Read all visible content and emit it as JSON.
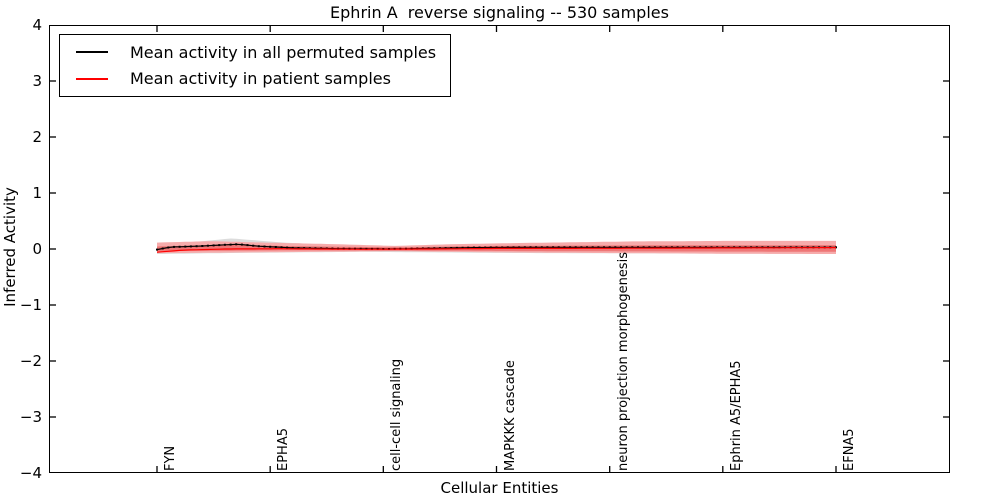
{
  "figure": {
    "title": "Ephrin A  reverse signaling -- 530 samples",
    "xlabel": "Cellular Entities",
    "ylabel": "Inferred Activity"
  },
  "legend": {
    "items": [
      {
        "label": "Mean activity in all permuted samples",
        "color": "#000000"
      },
      {
        "label": "Mean activity in patient samples",
        "color": "#ff0000"
      }
    ]
  },
  "chart_data": {
    "type": "line",
    "title": "Ephrin A  reverse signaling -- 530 samples",
    "xlabel": "Cellular Entities",
    "ylabel": "Inferred Activity",
    "ylim": [
      -4,
      4
    ],
    "yticks": [
      4,
      3,
      2,
      1,
      0,
      -1,
      -2,
      -3,
      -4
    ],
    "yticklabels": [
      "4",
      "3",
      "2",
      "1",
      "0",
      "−1",
      "−2",
      "−3",
      "−4"
    ],
    "grid": false,
    "legend_position": "upper left",
    "categories": [
      "FYN",
      "EPHA5",
      "cell-cell signaling",
      "MAPKKK cascade",
      "neuron projection morphogenesis",
      "Ephrin A5/EPHA5",
      "EFNA5"
    ],
    "category_positions": [
      0,
      0.1667,
      0.3333,
      0.5,
      0.6667,
      0.8333,
      1
    ],
    "n_dense_points": 121,
    "label_every": 20,
    "values_at_categories": {
      "permuted_mean": [
        0.0,
        0.03,
        0.0,
        0.03,
        0.03,
        0.03,
        0.03
      ],
      "patient_mean": [
        -0.05,
        0.0,
        0.0,
        0.0,
        0.01,
        0.02,
        0.03
      ]
    },
    "series": [
      {
        "name": "Mean activity in all permuted samples",
        "color": "#000000",
        "marker": "square",
        "control": [
          [
            0,
            -0.01
          ],
          [
            0.02,
            0.035
          ],
          [
            0.06,
            0.05
          ],
          [
            0.1,
            0.075
          ],
          [
            0.12,
            0.085
          ],
          [
            0.15,
            0.05
          ],
          [
            0.2,
            0.02
          ],
          [
            0.27,
            0.005
          ],
          [
            0.34,
            0.0
          ],
          [
            0.4,
            0.01
          ],
          [
            0.47,
            0.025
          ],
          [
            0.55,
            0.03
          ],
          [
            0.7,
            0.03
          ],
          [
            0.85,
            0.03
          ],
          [
            1,
            0.03
          ]
        ]
      },
      {
        "name": "Mean activity in patient samples",
        "color": "#ff0000",
        "marker": "none",
        "control": [
          [
            0,
            -0.055
          ],
          [
            0.04,
            -0.02
          ],
          [
            0.1,
            0.0
          ],
          [
            0.18,
            0.005
          ],
          [
            0.3,
            -0.005
          ],
          [
            0.4,
            0.0
          ],
          [
            0.5,
            0.01
          ],
          [
            0.65,
            0.012
          ],
          [
            0.8,
            0.018
          ],
          [
            1,
            0.025
          ]
        ]
      }
    ],
    "bands": [
      {
        "name": "permuted-std-band",
        "color": "#dcdcdc",
        "upper": [
          [
            0,
            0.06
          ],
          [
            0.05,
            0.12
          ],
          [
            0.11,
            0.19
          ],
          [
            0.18,
            0.12
          ],
          [
            0.26,
            0.07
          ],
          [
            0.34,
            0.04
          ],
          [
            0.42,
            0.08
          ],
          [
            0.5,
            0.09
          ],
          [
            0.6,
            0.08
          ],
          [
            0.75,
            0.09
          ],
          [
            1,
            0.09
          ]
        ],
        "lower": [
          [
            0,
            -0.09
          ],
          [
            0.12,
            -0.07
          ],
          [
            0.3,
            -0.05
          ],
          [
            0.5,
            -0.07
          ],
          [
            0.75,
            -0.08
          ],
          [
            1,
            -0.09
          ]
        ]
      },
      {
        "name": "patient-std-band",
        "color": "#f6abab",
        "upper": [
          [
            0,
            0.115
          ],
          [
            0.08,
            0.14
          ],
          [
            0.14,
            0.12
          ],
          [
            0.25,
            0.09
          ],
          [
            0.35,
            0.055
          ],
          [
            0.45,
            0.09
          ],
          [
            0.55,
            0.11
          ],
          [
            0.7,
            0.135
          ],
          [
            0.85,
            0.145
          ],
          [
            1,
            0.145
          ]
        ],
        "lower": [
          [
            0,
            -0.075
          ],
          [
            0.1,
            -0.065
          ],
          [
            0.25,
            -0.05
          ],
          [
            0.35,
            -0.04
          ],
          [
            0.5,
            -0.06
          ],
          [
            0.7,
            -0.075
          ],
          [
            0.85,
            -0.085
          ],
          [
            1,
            -0.09
          ]
        ]
      },
      {
        "name": "patient-stderr-band",
        "color": "#ee7676",
        "upper": [
          [
            0,
            0.045
          ],
          [
            0.1,
            0.075
          ],
          [
            0.2,
            0.05
          ],
          [
            0.35,
            0.03
          ],
          [
            0.5,
            0.055
          ],
          [
            0.7,
            0.065
          ],
          [
            1,
            0.07
          ]
        ],
        "lower": [
          [
            0,
            -0.035
          ],
          [
            0.2,
            -0.025
          ],
          [
            0.4,
            -0.03
          ],
          [
            0.6,
            -0.04
          ],
          [
            0.8,
            -0.045
          ],
          [
            1,
            -0.05
          ]
        ]
      }
    ]
  }
}
